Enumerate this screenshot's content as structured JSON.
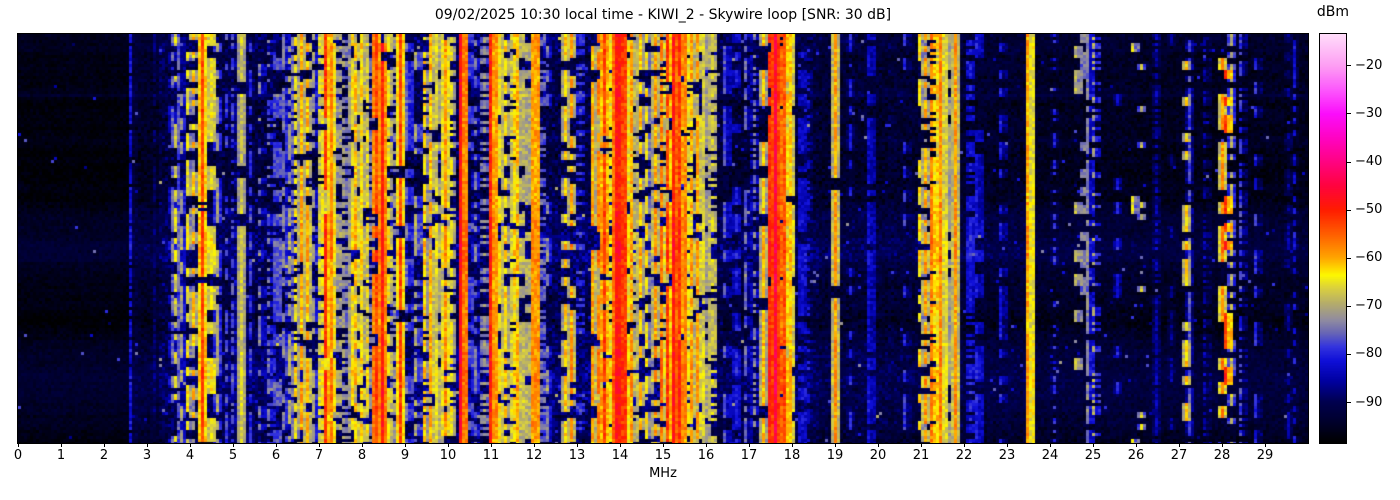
{
  "title": "09/02/2025 10:30 local time - KIWI_2 - Skywire loop [SNR: 30 dB]",
  "x_axis": {
    "label": "MHz",
    "min": 0,
    "max": 30,
    "tick_values": [
      0,
      1,
      2,
      3,
      4,
      5,
      6,
      7,
      8,
      9,
      10,
      11,
      12,
      13,
      14,
      15,
      16,
      17,
      18,
      19,
      20,
      21,
      22,
      23,
      24,
      25,
      26,
      27,
      28,
      29
    ],
    "tick_labels": [
      "0",
      "1",
      "2",
      "3",
      "4",
      "5",
      "6",
      "7",
      "8",
      "9",
      "10",
      "11",
      "12",
      "13",
      "14",
      "15",
      "16",
      "17",
      "18",
      "19",
      "20",
      "21",
      "22",
      "23",
      "24",
      "25",
      "26",
      "27",
      "28",
      "29"
    ]
  },
  "colorbar": {
    "label": "dBm",
    "vmin": -98.5,
    "vmax": -13.5,
    "tick_values": [
      -20,
      -30,
      -40,
      -50,
      -60,
      -70,
      -80,
      -90
    ],
    "tick_labels": [
      "−20",
      "−30",
      "−40",
      "−50",
      "−60",
      "−70",
      "−80",
      "−90"
    ]
  },
  "chart_data": {
    "type": "heatmap",
    "subtype": "rf-spectrogram-waterfall",
    "title": "09/02/2025 10:30 local time - KIWI_2 - Skywire loop [SNR: 30 dB]",
    "xlabel": "MHz",
    "x_range_mhz": [
      0,
      30
    ],
    "value_unit": "dBm",
    "value_range": [
      -98.5,
      -13.5
    ],
    "grid": false,
    "legend_position": "right-colorbar",
    "colormap_stops": [
      [
        0.0,
        "#000000"
      ],
      [
        0.055,
        "#000030"
      ],
      [
        0.1,
        "#00004f"
      ],
      [
        0.15,
        "#0000a0"
      ],
      [
        0.2,
        "#0f0fd8"
      ],
      [
        0.235,
        "#3434de"
      ],
      [
        0.27,
        "#6a68b4"
      ],
      [
        0.3,
        "#908ca0"
      ],
      [
        0.34,
        "#b4ac6c"
      ],
      [
        0.38,
        "#dcd23c"
      ],
      [
        0.41,
        "#fdf800"
      ],
      [
        0.452,
        "#ffa600"
      ],
      [
        0.51,
        "#ff5f00"
      ],
      [
        0.57,
        "#ff1c00"
      ],
      [
        0.63,
        "#ff0340"
      ],
      [
        0.688,
        "#ff0382"
      ],
      [
        0.745,
        "#ff03c1"
      ],
      [
        0.805,
        "#fb0dfb"
      ],
      [
        0.865,
        "#fc59fc"
      ],
      [
        0.923,
        "#fd9ef3"
      ],
      [
        1.0,
        "#ffdcfa"
      ]
    ],
    "noise_zones_format": [
      "f_start_mhz",
      "f_end_mhz",
      "base_dbm",
      "spread_db",
      "speckle_prob"
    ],
    "noise_zones": [
      [
        0.0,
        2.55,
        -96.0,
        1.2,
        0.004
      ],
      [
        2.55,
        3.3,
        -93.5,
        2.2,
        0.008
      ],
      [
        3.3,
        5.6,
        -91.0,
        3.5,
        0.014
      ],
      [
        5.6,
        8.0,
        -90.5,
        3.8,
        0.015
      ],
      [
        8.0,
        16.25,
        -90.0,
        4.0,
        0.016
      ],
      [
        16.25,
        18.6,
        -91.5,
        3.2,
        0.012
      ],
      [
        18.6,
        21.0,
        -92.5,
        2.8,
        0.01
      ],
      [
        21.0,
        23.5,
        -93.2,
        2.4,
        0.009
      ],
      [
        23.5,
        26.0,
        -94.0,
        2.0,
        0.008
      ],
      [
        26.0,
        30.0,
        -94.5,
        1.8,
        0.007
      ]
    ],
    "signals_format": [
      "center_mhz",
      "width_mhz",
      "peak_dbm",
      "duty_cycle"
    ],
    "signals": [
      [
        2.62,
        0.03,
        -82,
        0.85
      ],
      [
        3.2,
        0.03,
        -84,
        0.6
      ],
      [
        3.58,
        0.05,
        -74,
        0.5
      ],
      [
        3.66,
        0.04,
        -66,
        0.45
      ],
      [
        3.74,
        0.05,
        -76,
        0.75
      ],
      [
        3.8,
        0.04,
        -71,
        0.5
      ],
      [
        3.95,
        0.05,
        -64,
        0.55
      ],
      [
        4.07,
        0.04,
        -60,
        0.5
      ],
      [
        4.28,
        0.07,
        -52,
        0.97
      ],
      [
        4.47,
        0.05,
        -57,
        0.65
      ],
      [
        4.63,
        0.04,
        -70,
        0.55
      ],
      [
        4.85,
        0.03,
        -78,
        0.4
      ],
      [
        5.0,
        0.04,
        -76,
        0.5
      ],
      [
        5.17,
        0.05,
        -61,
        0.97
      ],
      [
        5.4,
        0.03,
        -79,
        0.7
      ],
      [
        5.62,
        0.03,
        -74,
        0.4
      ],
      [
        5.85,
        0.04,
        -71,
        0.45
      ],
      [
        6.0,
        0.05,
        -67,
        0.5
      ],
      [
        6.18,
        0.04,
        -74,
        0.55
      ],
      [
        6.3,
        0.07,
        -69,
        0.65
      ],
      [
        6.45,
        0.05,
        -64,
        0.6
      ],
      [
        6.59,
        0.06,
        -60,
        0.8
      ],
      [
        6.72,
        0.05,
        -59,
        0.7
      ],
      [
        6.88,
        0.04,
        -71,
        0.5
      ],
      [
        7.05,
        0.06,
        -57,
        0.85
      ],
      [
        7.16,
        0.08,
        -51,
        0.92
      ],
      [
        7.27,
        0.06,
        -54,
        0.85
      ],
      [
        7.39,
        0.05,
        -61,
        0.7
      ],
      [
        7.6,
        0.04,
        -64,
        0.6
      ],
      [
        7.76,
        0.05,
        -61,
        0.7
      ],
      [
        7.87,
        0.04,
        -57,
        0.7
      ],
      [
        8.01,
        0.05,
        -59,
        0.8
      ],
      [
        8.13,
        0.04,
        -64,
        0.6
      ],
      [
        8.31,
        0.1,
        -50,
        0.95
      ],
      [
        8.46,
        0.09,
        -48,
        0.96
      ],
      [
        8.59,
        0.05,
        -59,
        0.8
      ],
      [
        8.73,
        0.04,
        -67,
        0.5
      ],
      [
        8.89,
        0.04,
        -53,
        0.9
      ],
      [
        9.06,
        0.03,
        -70,
        0.5
      ],
      [
        9.26,
        0.04,
        -68,
        0.5
      ],
      [
        9.46,
        0.05,
        -62,
        0.7
      ],
      [
        9.61,
        0.05,
        -58,
        0.8
      ],
      [
        9.76,
        0.05,
        -60,
        0.7
      ],
      [
        9.92,
        0.06,
        -55,
        0.85
      ],
      [
        10.06,
        0.04,
        -61,
        0.6
      ],
      [
        10.3,
        0.015,
        -47,
        1.0
      ],
      [
        10.46,
        0.04,
        -68,
        0.5
      ],
      [
        10.62,
        0.04,
        -72,
        0.5
      ],
      [
        10.82,
        0.04,
        -65,
        0.5
      ],
      [
        11.0,
        0.015,
        -49,
        1.0
      ],
      [
        11.17,
        0.05,
        -58,
        0.7
      ],
      [
        11.32,
        0.05,
        -60,
        0.7
      ],
      [
        11.52,
        0.05,
        -57,
        0.85
      ],
      [
        11.63,
        0.05,
        -59,
        0.8
      ],
      [
        11.86,
        0.05,
        -60,
        0.7
      ],
      [
        12.0,
        0.015,
        -49,
        1.0
      ],
      [
        12.12,
        0.04,
        -66,
        0.55
      ],
      [
        12.3,
        0.03,
        -73,
        0.4
      ],
      [
        12.72,
        0.05,
        -61,
        0.7
      ],
      [
        12.87,
        0.05,
        -59,
        0.7
      ],
      [
        13.05,
        0.04,
        -70,
        0.4
      ],
      [
        13.37,
        0.05,
        -59,
        0.7
      ],
      [
        13.5,
        0.05,
        -57,
        0.75
      ],
      [
        13.62,
        0.04,
        -50,
        0.9
      ],
      [
        13.75,
        0.05,
        -57,
        0.8
      ],
      [
        13.9,
        0.06,
        -46,
        1.0
      ],
      [
        14.02,
        0.08,
        -43,
        1.0
      ],
      [
        14.14,
        0.05,
        -54,
        0.9
      ],
      [
        14.27,
        0.05,
        -59,
        0.7
      ],
      [
        14.47,
        0.04,
        -61,
        0.6
      ],
      [
        14.62,
        0.04,
        -64,
        0.6
      ],
      [
        14.82,
        0.05,
        -59,
        0.7
      ],
      [
        14.97,
        0.05,
        -57,
        0.8
      ],
      [
        15.12,
        0.05,
        -51,
        0.9
      ],
      [
        15.27,
        0.08,
        -45,
        0.96
      ],
      [
        15.4,
        0.06,
        -49,
        0.9
      ],
      [
        15.54,
        0.05,
        -55,
        0.8
      ],
      [
        15.67,
        0.05,
        -59,
        0.8
      ],
      [
        15.82,
        0.05,
        -57,
        0.8
      ],
      [
        15.97,
        0.04,
        -61,
        0.7
      ],
      [
        16.12,
        0.04,
        -59,
        0.6
      ],
      [
        16.45,
        0.03,
        -74,
        0.55
      ],
      [
        16.68,
        0.03,
        -74,
        0.55
      ],
      [
        16.92,
        0.03,
        -76,
        0.5
      ],
      [
        17.12,
        0.03,
        -74,
        0.5
      ],
      [
        17.33,
        0.04,
        -61,
        0.8
      ],
      [
        17.49,
        0.06,
        -49,
        0.92
      ],
      [
        17.6,
        0.08,
        -43,
        1.0
      ],
      [
        17.72,
        0.07,
        -46,
        0.96
      ],
      [
        17.84,
        0.06,
        -52,
        0.9
      ],
      [
        17.94,
        0.05,
        -57,
        0.85
      ],
      [
        18.21,
        0.03,
        -73,
        0.6
      ],
      [
        18.36,
        0.03,
        -78,
        0.4
      ],
      [
        19.01,
        0.05,
        -59,
        0.96
      ],
      [
        19.35,
        0.02,
        -80,
        0.4
      ],
      [
        19.81,
        0.02,
        -75,
        0.85
      ],
      [
        20.3,
        0.02,
        -82,
        0.3
      ],
      [
        20.62,
        0.03,
        -79,
        0.4
      ],
      [
        20.97,
        0.04,
        -63,
        0.6
      ],
      [
        21.1,
        0.04,
        -59,
        0.7
      ],
      [
        21.27,
        0.05,
        -52,
        0.8
      ],
      [
        21.47,
        0.11,
        -57,
        0.96
      ],
      [
        21.62,
        0.05,
        -61,
        0.8
      ],
      [
        21.8,
        0.015,
        -59,
        1.0
      ],
      [
        22.12,
        0.03,
        -73,
        0.6
      ],
      [
        22.32,
        0.03,
        -74,
        0.5
      ],
      [
        22.87,
        0.03,
        -77,
        0.4
      ],
      [
        23.5,
        0.015,
        -55,
        1.0
      ],
      [
        24.1,
        0.02,
        -80,
        0.3
      ],
      [
        24.62,
        0.04,
        -63,
        0.25
      ],
      [
        24.77,
        0.03,
        -65,
        0.25
      ],
      [
        24.88,
        0.015,
        -73,
        0.8
      ],
      [
        25.02,
        0.03,
        -70,
        0.3
      ],
      [
        25.55,
        0.02,
        -78,
        0.2
      ],
      [
        25.92,
        0.03,
        -65,
        0.15
      ],
      [
        26.12,
        0.03,
        -67,
        0.12
      ],
      [
        26.45,
        0.015,
        -80,
        0.7
      ],
      [
        26.8,
        0.02,
        -82,
        0.3
      ],
      [
        27.16,
        0.04,
        -61,
        0.5
      ],
      [
        27.24,
        0.015,
        -77,
        0.8
      ],
      [
        27.62,
        0.015,
        -80,
        0.6
      ],
      [
        28.0,
        0.04,
        -57,
        0.6
      ],
      [
        28.09,
        0.03,
        -51,
        0.25
      ],
      [
        28.22,
        0.015,
        -69,
        0.5
      ],
      [
        28.44,
        0.015,
        -78,
        0.6
      ],
      [
        28.79,
        0.015,
        -79,
        0.5
      ],
      [
        29.52,
        0.015,
        -81,
        0.6
      ],
      [
        29.68,
        0.015,
        -82,
        0.5
      ]
    ]
  }
}
